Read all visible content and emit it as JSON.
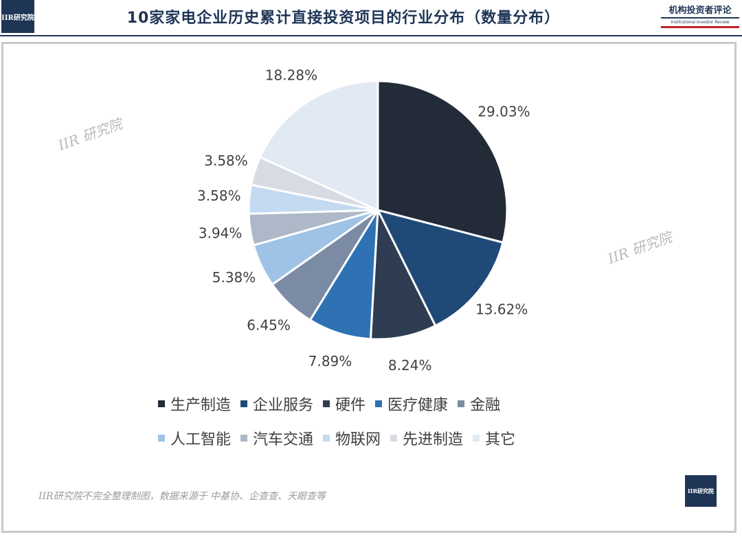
{
  "header": {
    "title": "10家家电企业历史累计直接投资项目的行业分布（数量分布）",
    "logo_text": "IIR研究院",
    "brand_cn": "机构投资者评论",
    "brand_en": "Institutional Investor Review"
  },
  "watermarks": [
    "IIR 研究院",
    "IIR 研究院"
  ],
  "source": "IIR研究院不完全整理制图，数据来源于 中基协、企查查、天眼查等",
  "footer_logo_text": "IIR研究院",
  "chart_data": {
    "type": "pie",
    "title": "",
    "categories": [
      "生产制造",
      "企业服务",
      "硬件",
      "医疗健康",
      "金融",
      "人工智能",
      "汽车交通",
      "物联网",
      "先进制造",
      "其它"
    ],
    "values": [
      29.03,
      13.62,
      8.24,
      7.89,
      6.45,
      5.38,
      3.94,
      3.58,
      3.58,
      18.28
    ],
    "labels": [
      "29.03%",
      "13.62%",
      "8.24%",
      "7.89%",
      "6.45%",
      "5.38%",
      "3.94%",
      "3.58%",
      "3.58%",
      "18.28%"
    ],
    "colors": [
      "#232a38",
      "#1f4a78",
      "#2f3d52",
      "#2e72b4",
      "#7b8ba3",
      "#9ec3e6",
      "#adb8c8",
      "#c3daf0",
      "#d7dce4",
      "#e1e9f3"
    ],
    "legend_position": "bottom"
  }
}
